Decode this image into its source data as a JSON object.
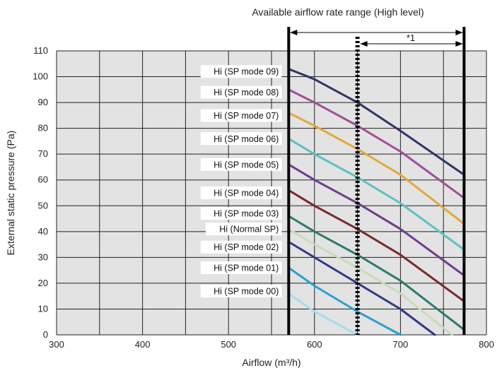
{
  "chart_data": {
    "type": "line",
    "title": "Available airflow rate range (High level)",
    "xlabel": "Airflow (m³/h)",
    "ylabel": "External static pressure (Pa)",
    "xlim": [
      300,
      800
    ],
    "ylim": [
      0,
      110
    ],
    "x_ticks": [
      "300",
      "400",
      "500",
      "600",
      "700",
      "800"
    ],
    "y_ticks": [
      "0",
      "10",
      "20",
      "30",
      "40",
      "50",
      "60",
      "70",
      "80",
      "90",
      "100",
      "110"
    ],
    "grid": true,
    "range_min_airflow": 570,
    "range_max_airflow": 774,
    "note_line_airflow": 650,
    "note_label": "*1",
    "series": [
      {
        "name": "Hi (SP mode 09)",
        "color": "#2e3566",
        "x": [
          570,
          600,
          650,
          700,
          774
        ],
        "y": [
          103,
          99,
          90,
          79,
          62
        ]
      },
      {
        "name": "Hi (SP mode 08)",
        "color": "#a04e9a",
        "x": [
          570,
          600,
          650,
          700,
          774
        ],
        "y": [
          95,
          90,
          81,
          71,
          53
        ]
      },
      {
        "name": "Hi (SP mode 07)",
        "color": "#e2a83c",
        "x": [
          570,
          600,
          650,
          700,
          774
        ],
        "y": [
          86,
          81,
          72,
          62,
          43
        ]
      },
      {
        "name": "Hi (SP mode 06)",
        "color": "#5bc0c7",
        "x": [
          570,
          600,
          650,
          700,
          774
        ],
        "y": [
          76,
          70,
          61,
          51,
          33
        ]
      },
      {
        "name": "Hi (SP mode 05)",
        "color": "#6d3c8e",
        "x": [
          570,
          600,
          650,
          700,
          774
        ],
        "y": [
          66,
          60,
          51,
          41,
          23
        ]
      },
      {
        "name": "Hi (SP mode 04)",
        "color": "#7a2a2a",
        "x": [
          570,
          600,
          650,
          700,
          774
        ],
        "y": [
          56,
          50,
          41,
          31,
          13
        ]
      },
      {
        "name": "Hi (SP mode 03)",
        "color": "#2c7a6a",
        "x": [
          570,
          600,
          650,
          700,
          774
        ],
        "y": [
          46,
          40,
          31,
          21,
          2
        ]
      },
      {
        "name": "Hi (Normal SP)",
        "color": "#c8dcb8",
        "x": [
          570,
          600,
          650,
          700,
          760
        ],
        "y": [
          41,
          35,
          26,
          16,
          0
        ]
      },
      {
        "name": "Hi (SP mode 02)",
        "color": "#2f3a86",
        "x": [
          570,
          600,
          650,
          700,
          740
        ],
        "y": [
          36,
          30,
          20,
          10,
          0
        ]
      },
      {
        "name": "Hi (SP mode 01)",
        "color": "#2a9fd0",
        "x": [
          570,
          600,
          650,
          700
        ],
        "y": [
          26,
          19,
          9,
          0
        ]
      },
      {
        "name": "Hi (SP mode 00)",
        "color": "#a5dcec",
        "x": [
          570,
          600,
          650
        ],
        "y": [
          16,
          9,
          0
        ]
      }
    ],
    "curve_labels": [
      {
        "text": "Hi (SP mode 09)",
        "y": 102
      },
      {
        "text": "Hi (SP mode 08)",
        "y": 94
      },
      {
        "text": "Hi (SP mode 07)",
        "y": 85
      },
      {
        "text": "Hi (SP mode 06)",
        "y": 76
      },
      {
        "text": "Hi (SP mode 05)",
        "y": 66
      },
      {
        "text": "Hi (SP mode 04)",
        "y": 55
      },
      {
        "text": "Hi (SP mode 03)",
        "y": 47
      },
      {
        "text": "Hi (Normal SP)",
        "y": 41
      },
      {
        "text": "Hi (SP mode 02)",
        "y": 34
      },
      {
        "text": "Hi (SP mode 01)",
        "y": 26
      },
      {
        "text": "Hi (SP mode 00)",
        "y": 17
      }
    ]
  }
}
